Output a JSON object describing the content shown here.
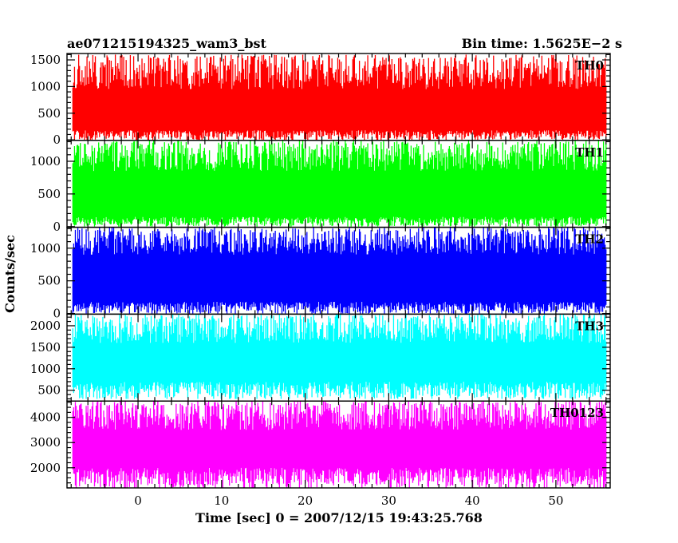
{
  "chart_data": {
    "type": "line",
    "title_left": "ae071215194325_wam3_bst",
    "title_right": "Bin time: 1.5625E−2 s",
    "ylabel": "Counts/sec",
    "xlabel": "Time [sec] 0 = 2007/12/15 19:43:25.768",
    "xlim": [
      -8.5,
      56.5
    ],
    "data_xrange": [
      -7.8,
      56.0
    ],
    "bin_time": 0.015625,
    "x_ticks": [
      0,
      10,
      20,
      30,
      40,
      50
    ],
    "panels": [
      {
        "name": "TH0",
        "color": "#ff0000",
        "ylim": [
          -10,
          1620
        ],
        "y_ticks": [
          0,
          500,
          1000,
          1500
        ],
        "low": [
          0,
          180
        ],
        "high": [
          950,
          1600
        ],
        "spikes": 1600
      },
      {
        "name": "TH1",
        "color": "#00ff00",
        "ylim": [
          -10,
          1320
        ],
        "y_ticks": [
          0,
          500,
          1000
        ],
        "low": [
          0,
          150
        ],
        "high": [
          850,
          1320
        ],
        "spikes": 1320
      },
      {
        "name": "TH2",
        "color": "#0000ff",
        "ylim": [
          -10,
          1320
        ],
        "y_ticks": [
          0,
          500,
          1000
        ],
        "low": [
          0,
          180
        ],
        "high": [
          900,
          1320
        ],
        "spikes": 1320
      },
      {
        "name": "TH3",
        "color": "#00ffff",
        "ylim": [
          250,
          2270
        ],
        "y_ticks": [
          500,
          1000,
          1500,
          2000
        ],
        "low": [
          300,
          700
        ],
        "high": [
          1600,
          2270
        ],
        "spikes": 2270
      },
      {
        "name": "TH0123",
        "color": "#ff00ff",
        "ylim": [
          1200,
          4650
        ],
        "y_ticks": [
          2000,
          3000,
          4000
        ],
        "low": [
          1200,
          2000
        ],
        "high": [
          3500,
          4650
        ],
        "spikes": 4650
      }
    ]
  }
}
